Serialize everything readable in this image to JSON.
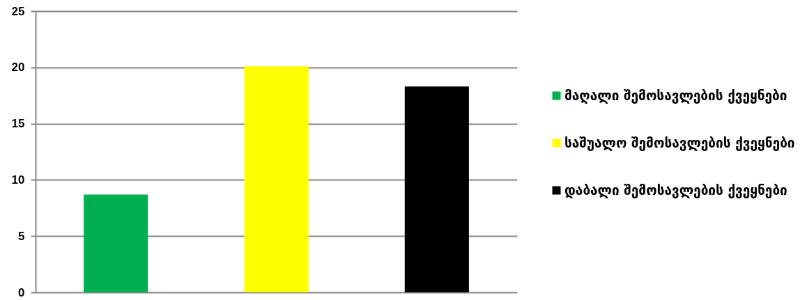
{
  "chart_data": {
    "type": "bar",
    "categories": [
      null,
      null,
      null
    ],
    "series": [
      {
        "name": "მაღალი შემოსავლების ქვეყნები",
        "color": "#00b050",
        "values": [
          8.7,
          null,
          null
        ]
      },
      {
        "name": "საშუალო შემოსავლების ქვეყნები",
        "color": "#ffff00",
        "values": [
          null,
          20.1,
          null
        ]
      },
      {
        "name": "დაბალი შემოსავლების ქვეყნები",
        "color": "#000000",
        "values": [
          null,
          null,
          18.3
        ]
      }
    ],
    "ylim": [
      0,
      25
    ],
    "yticks": [
      0,
      5,
      10,
      15,
      20,
      25
    ],
    "grid": "y",
    "legend": "right",
    "tick_labels": "y"
  }
}
